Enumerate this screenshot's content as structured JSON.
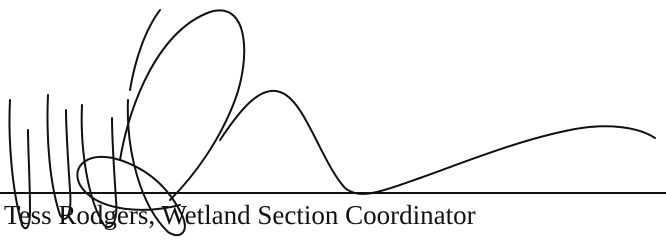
{
  "signature_block": {
    "caption": "Tess Rodgers, Wetland Section Coordinator"
  }
}
